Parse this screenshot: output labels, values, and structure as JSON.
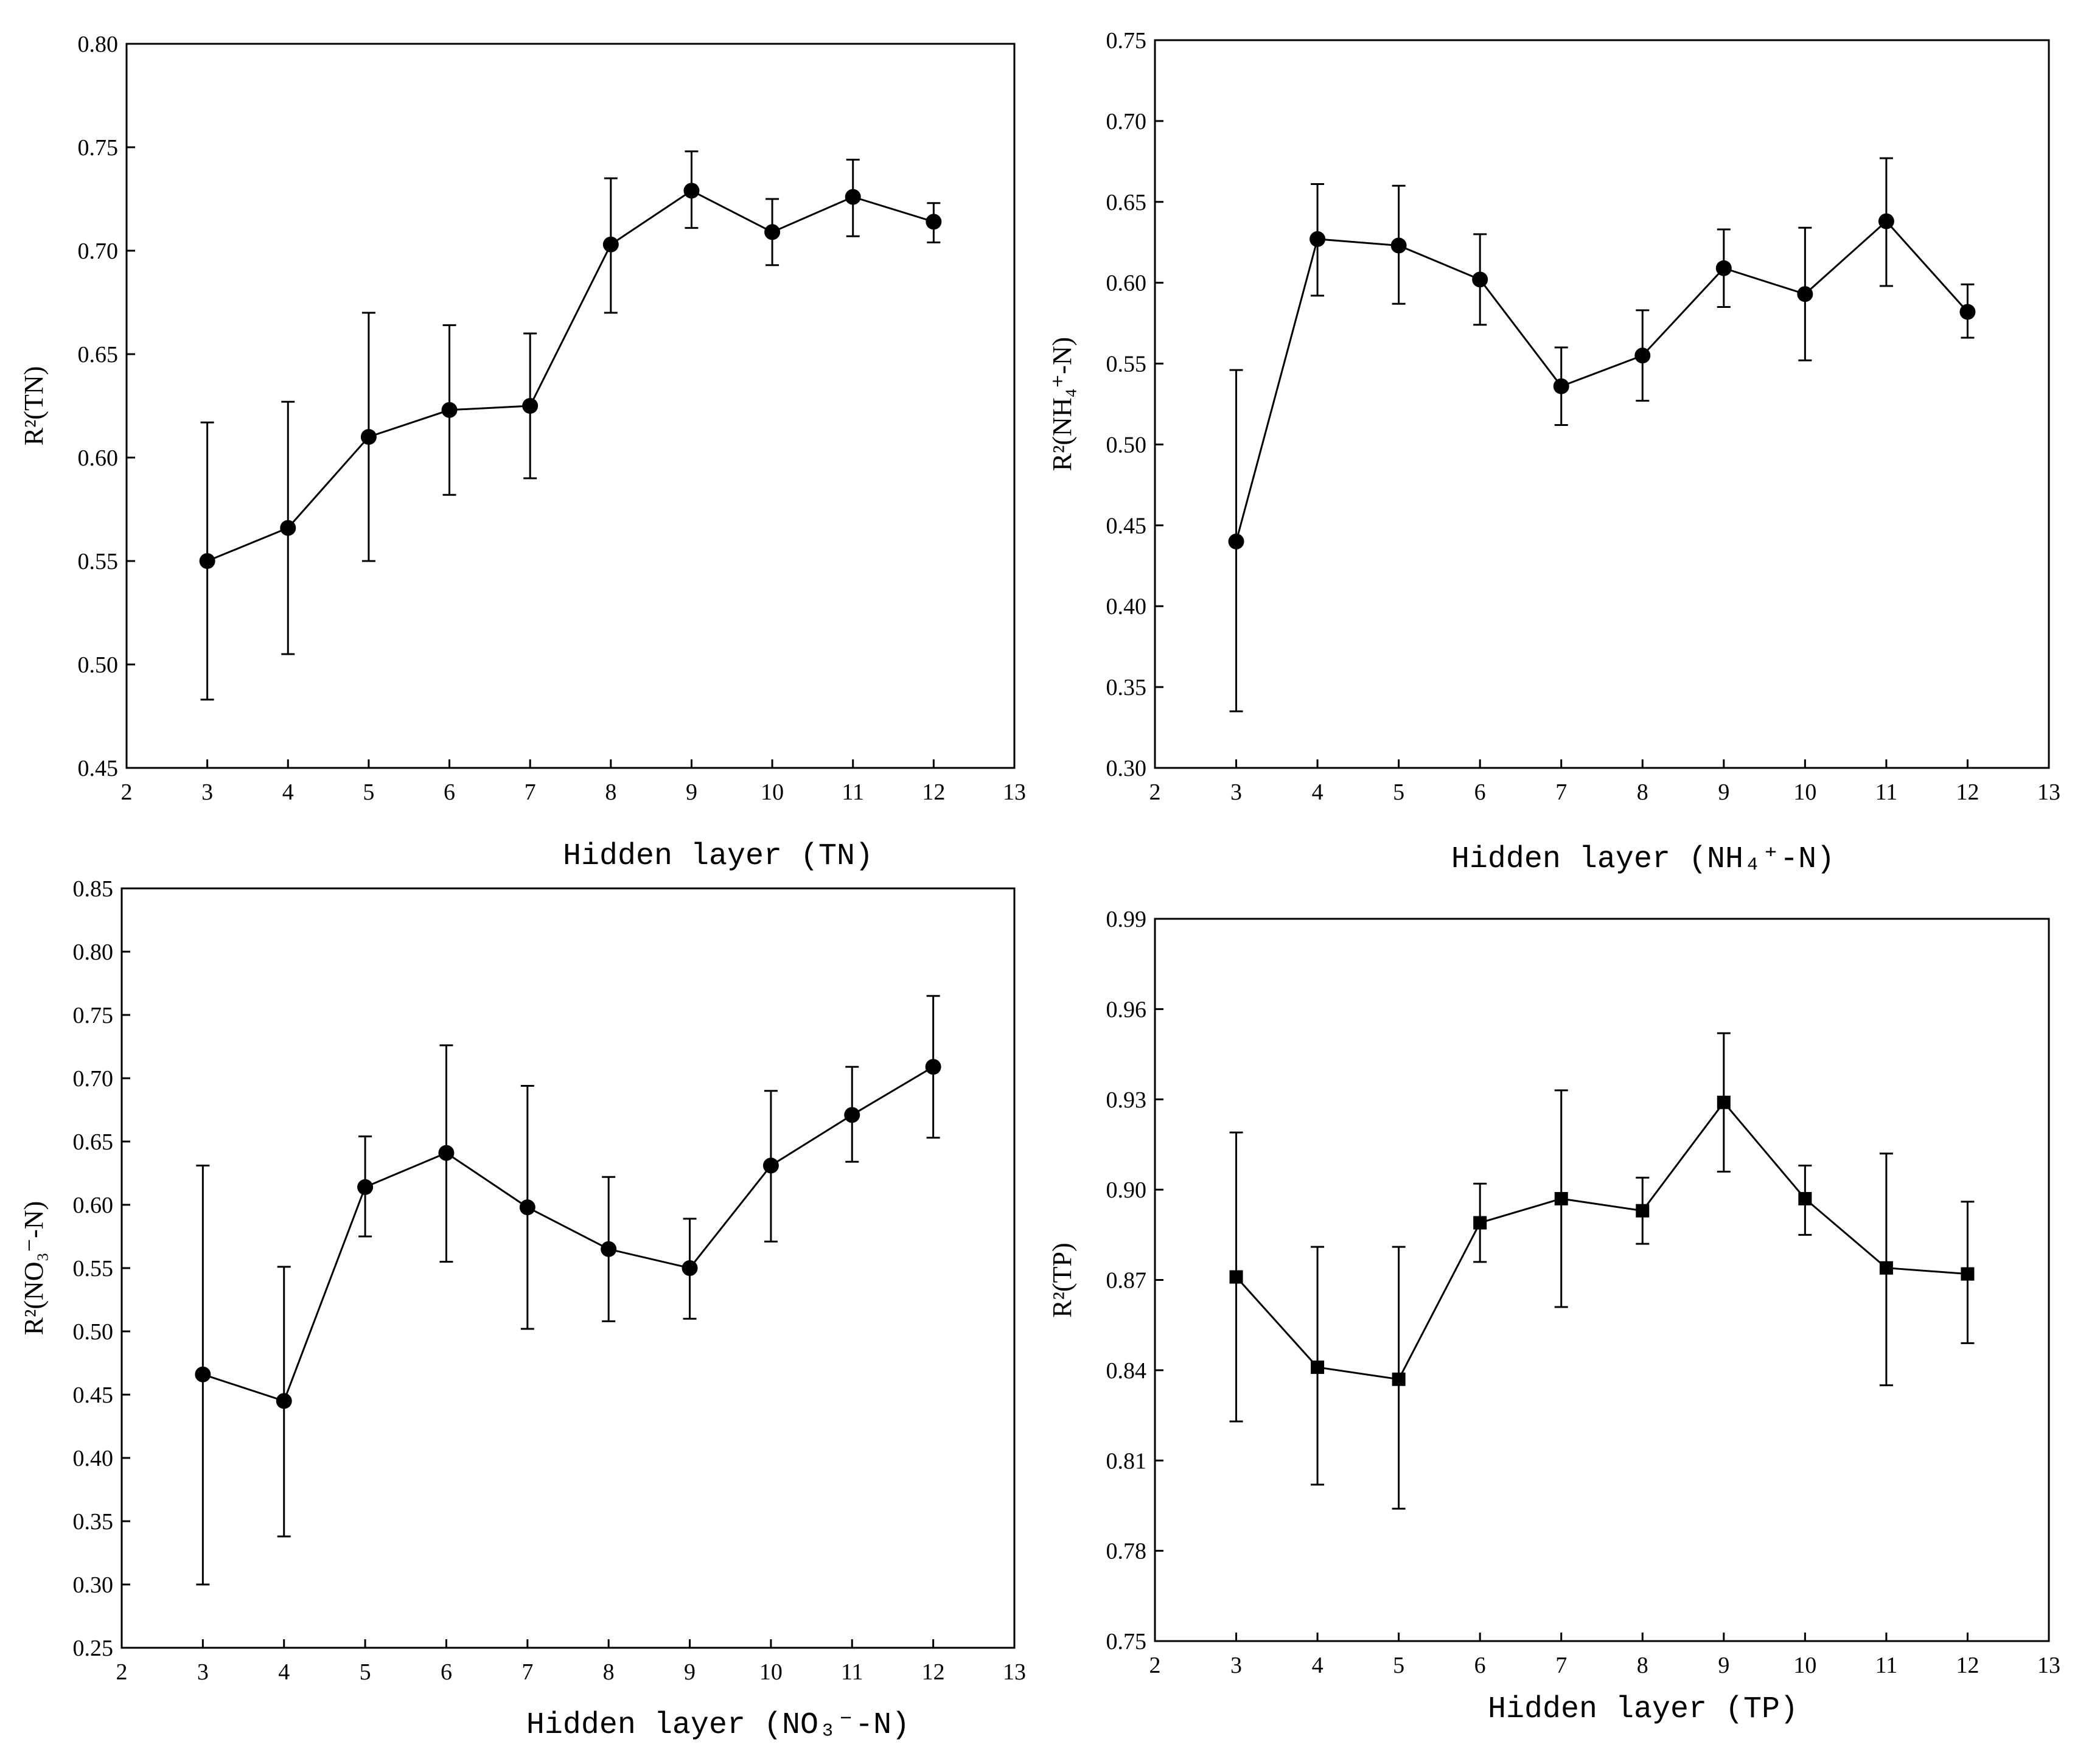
{
  "chart_data": [
    {
      "type": "line",
      "id": "tn",
      "marker": "circle",
      "xlabel": "Hidden layer (TN)",
      "ylabel": "R²(TN)",
      "xlim": [
        2,
        13
      ],
      "ylim": [
        0.45,
        0.8
      ],
      "xticks": [
        2,
        3,
        4,
        5,
        6,
        7,
        8,
        9,
        10,
        11,
        12,
        13
      ],
      "xtick_labels": [
        "2",
        "3",
        "4",
        "5",
        "6",
        "7",
        "8",
        "9",
        "10",
        "11",
        "12",
        "13"
      ],
      "yticks": [
        0.45,
        0.5,
        0.55,
        0.6,
        0.65,
        0.7,
        0.75,
        0.8
      ],
      "ytick_labels": [
        "0.45",
        "0.50",
        "0.55",
        "0.60",
        "0.65",
        "0.70",
        "0.75",
        "0.80"
      ],
      "x": [
        3,
        4,
        5,
        6,
        7,
        8,
        9,
        10,
        11,
        12
      ],
      "y": [
        0.55,
        0.566,
        0.61,
        0.623,
        0.625,
        0.703,
        0.729,
        0.709,
        0.726,
        0.714
      ],
      "err_low": [
        0.483,
        0.505,
        0.55,
        0.582,
        0.59,
        0.67,
        0.711,
        0.693,
        0.707,
        0.704
      ],
      "err_high": [
        0.617,
        0.627,
        0.67,
        0.664,
        0.66,
        0.735,
        0.748,
        0.725,
        0.744,
        0.723
      ]
    },
    {
      "type": "line",
      "id": "nh4",
      "marker": "circle",
      "xlabel": "Hidden layer (NH₄⁺-N)",
      "ylabel": "R²(NH₄⁺-N)",
      "xlim": [
        2,
        13
      ],
      "ylim": [
        0.3,
        0.75
      ],
      "xticks": [
        2,
        3,
        4,
        5,
        6,
        7,
        8,
        9,
        10,
        11,
        12,
        13
      ],
      "xtick_labels": [
        "2",
        "3",
        "4",
        "5",
        "6",
        "7",
        "8",
        "9",
        "10",
        "11",
        "12",
        "13"
      ],
      "yticks": [
        0.3,
        0.35,
        0.4,
        0.45,
        0.5,
        0.55,
        0.6,
        0.65,
        0.7,
        0.75
      ],
      "ytick_labels": [
        "0.30",
        "0.35",
        "0.40",
        "0.45",
        "0.50",
        "0.55",
        "0.60",
        "0.65",
        "0.70",
        "0.75"
      ],
      "x": [
        3,
        4,
        5,
        6,
        7,
        8,
        9,
        10,
        11,
        12
      ],
      "y": [
        0.44,
        0.627,
        0.623,
        0.602,
        0.536,
        0.555,
        0.609,
        0.593,
        0.638,
        0.582
      ],
      "err_low": [
        0.335,
        0.592,
        0.587,
        0.574,
        0.512,
        0.527,
        0.585,
        0.552,
        0.598,
        0.566
      ],
      "err_high": [
        0.546,
        0.661,
        0.66,
        0.63,
        0.56,
        0.583,
        0.633,
        0.634,
        0.677,
        0.599
      ]
    },
    {
      "type": "line",
      "id": "no3",
      "marker": "circle",
      "xlabel": "Hidden layer (NO₃⁻-N)",
      "ylabel": "R²(NO₃⁻-N)",
      "xlim": [
        2,
        13
      ],
      "ylim": [
        0.25,
        0.85
      ],
      "xticks": [
        2,
        3,
        4,
        5,
        6,
        7,
        8,
        9,
        10,
        11,
        12,
        13
      ],
      "xtick_labels": [
        "2",
        "3",
        "4",
        "5",
        "6",
        "7",
        "8",
        "9",
        "10",
        "11",
        "12",
        "13"
      ],
      "yticks": [
        0.25,
        0.3,
        0.35,
        0.4,
        0.45,
        0.5,
        0.55,
        0.6,
        0.65,
        0.7,
        0.75,
        0.8,
        0.85
      ],
      "ytick_labels": [
        "0.25",
        "0.30",
        "0.35",
        "0.40",
        "0.45",
        "0.50",
        "0.55",
        "0.60",
        "0.65",
        "0.70",
        "0.75",
        "0.80",
        "0.85"
      ],
      "x": [
        3,
        4,
        5,
        6,
        7,
        8,
        9,
        10,
        11,
        12
      ],
      "y": [
        0.466,
        0.445,
        0.614,
        0.641,
        0.598,
        0.565,
        0.55,
        0.631,
        0.671,
        0.709
      ],
      "err_low": [
        0.3,
        0.338,
        0.575,
        0.555,
        0.502,
        0.508,
        0.51,
        0.571,
        0.634,
        0.653
      ],
      "err_high": [
        0.631,
        0.551,
        0.654,
        0.726,
        0.694,
        0.622,
        0.589,
        0.69,
        0.709,
        0.765
      ]
    },
    {
      "type": "line",
      "id": "tp",
      "marker": "square",
      "xlabel": "Hidden layer (TP)",
      "ylabel": "R²(TP)",
      "xlim": [
        2,
        13
      ],
      "ylim": [
        0.75,
        0.99
      ],
      "xticks": [
        2,
        3,
        4,
        5,
        6,
        7,
        8,
        9,
        10,
        11,
        12,
        13
      ],
      "xtick_labels": [
        "2",
        "3",
        "4",
        "5",
        "6",
        "7",
        "8",
        "9",
        "10",
        "11",
        "12",
        "13"
      ],
      "yticks": [
        0.75,
        0.78,
        0.81,
        0.84,
        0.87,
        0.9,
        0.93,
        0.96,
        0.99
      ],
      "ytick_labels": [
        "0.75",
        "0.78",
        "0.81",
        "0.84",
        "0.87",
        "0.90",
        "0.93",
        "0.96",
        "0.99"
      ],
      "x": [
        3,
        4,
        5,
        6,
        7,
        8,
        9,
        10,
        11,
        12
      ],
      "y": [
        0.871,
        0.841,
        0.837,
        0.889,
        0.897,
        0.893,
        0.929,
        0.897,
        0.874,
        0.872
      ],
      "err_low": [
        0.823,
        0.802,
        0.794,
        0.876,
        0.861,
        0.882,
        0.906,
        0.885,
        0.835,
        0.849
      ],
      "err_high": [
        0.919,
        0.881,
        0.881,
        0.902,
        0.933,
        0.904,
        0.952,
        0.908,
        0.912,
        0.896
      ]
    }
  ]
}
